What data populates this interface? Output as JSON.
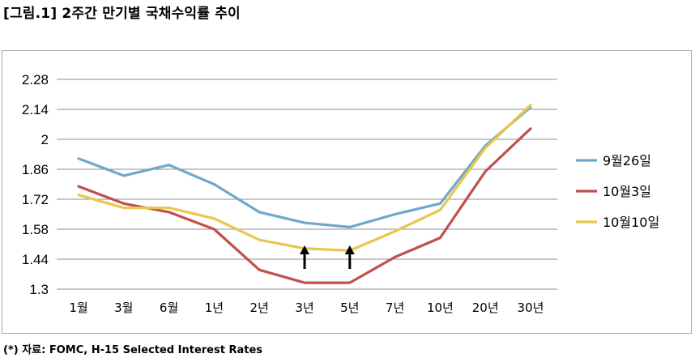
{
  "figure_title": "[그림.1] 2주간 만기별 국채수익률 추이",
  "footnote": "(*) 자료: FOMC, H-15 Selected Interest Rates",
  "chart_data": {
    "type": "line",
    "title": "",
    "xlabel": "",
    "ylabel": "",
    "categories": [
      "1월",
      "3월",
      "6월",
      "1년",
      "2년",
      "3년",
      "5년",
      "7년",
      "10년",
      "20년",
      "30년"
    ],
    "y_ticks": [
      "2.28",
      "2.14",
      "2",
      "1.86",
      "1.72",
      "1.58",
      "1.44",
      "1.3"
    ],
    "ylim": [
      1.3,
      2.28
    ],
    "grid": true,
    "legend_position": "right",
    "series": [
      {
        "name": "9월26일",
        "color": "#6fa8c8",
        "values": [
          1.91,
          1.83,
          1.88,
          1.79,
          1.66,
          1.61,
          1.59,
          1.65,
          1.7,
          1.97,
          2.15
        ]
      },
      {
        "name": "10월3일",
        "color": "#c0504d",
        "values": [
          1.78,
          1.7,
          1.66,
          1.58,
          1.39,
          1.33,
          1.33,
          1.45,
          1.54,
          1.85,
          2.05
        ]
      },
      {
        "name": "10월10일",
        "color": "#e8c650",
        "values": [
          1.74,
          1.68,
          1.68,
          1.63,
          1.53,
          1.49,
          1.48,
          1.57,
          1.67,
          1.96,
          2.16
        ]
      }
    ],
    "annotations": [
      {
        "type": "up-arrow",
        "category": "3년"
      },
      {
        "type": "up-arrow",
        "category": "5년"
      }
    ]
  }
}
